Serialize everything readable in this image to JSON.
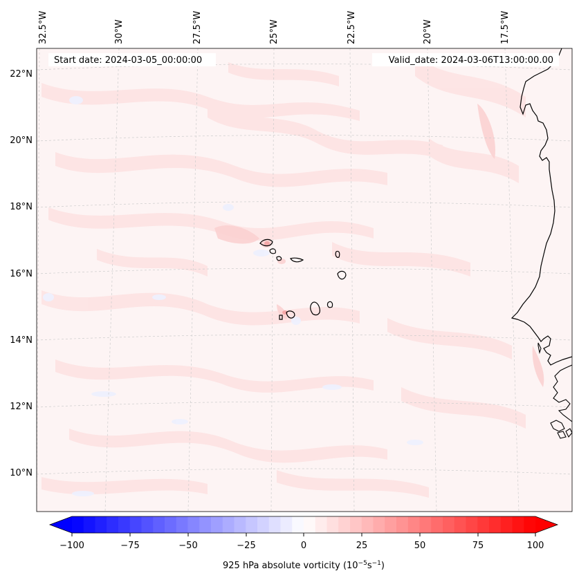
{
  "map": {
    "start_date_text": "Start date: 2024-03-05_00:00:00",
    "valid_date_text": "Valid_date: 2024-03-06T13:00:00.00",
    "lon_labels": [
      "32.5°W",
      "30°W",
      "27.5°W",
      "25°W",
      "22.5°W",
      "20°W",
      "17.5°W"
    ],
    "lat_labels": [
      "22°N",
      "20°N",
      "18°N",
      "16°N",
      "14°N",
      "12°N",
      "10°N"
    ],
    "field_colors": {
      "background": "#fdf4f4",
      "light_red": "#fde4e4",
      "medium_red": "#fbd2d2",
      "light_blue": "#eef0fe",
      "coastline": "#000000",
      "gridline": "#cccccc"
    }
  },
  "colorbar": {
    "label_prefix": "925 hPa absolute vorticity (10",
    "label_exp1": "−5",
    "label_mid": "s",
    "label_exp2": "−1",
    "label_suffix": ")",
    "ticks": [
      "−100",
      "−75",
      "−50",
      "−25",
      "0",
      "25",
      "50",
      "75",
      "100"
    ],
    "min": -100,
    "max": 100,
    "levels": 40,
    "colormap": "bwr",
    "low_color": "#0000ff",
    "high_color": "#ff0000",
    "extend": "both"
  }
}
